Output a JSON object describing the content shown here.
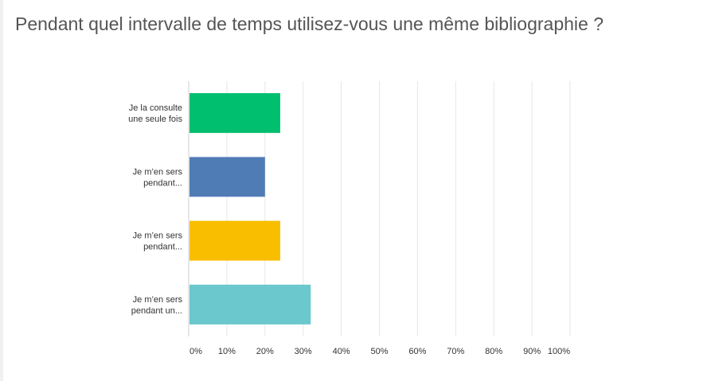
{
  "title": "Pendant quel intervalle de temps utilisez-vous une même bibliographie ?",
  "chart_data": {
    "type": "bar",
    "orientation": "horizontal",
    "categories": [
      [
        "Je la consulte",
        "une seule fois"
      ],
      [
        "Je m’en sers",
        "pendant..."
      ],
      [
        "Je m’en sers",
        "pendant..."
      ],
      [
        "Je m’en sers",
        "pendant un..."
      ]
    ],
    "values": [
      24,
      20,
      24,
      32
    ],
    "colors": [
      "#00bf6f",
      "#507cb6",
      "#f9be00",
      "#6bc8cd"
    ],
    "xlim": [
      0,
      100
    ],
    "xticks": [
      "0%",
      "10%",
      "20%",
      "30%",
      "40%",
      "50%",
      "60%",
      "70%",
      "80%",
      "90%",
      "100%"
    ],
    "grid": true
  }
}
